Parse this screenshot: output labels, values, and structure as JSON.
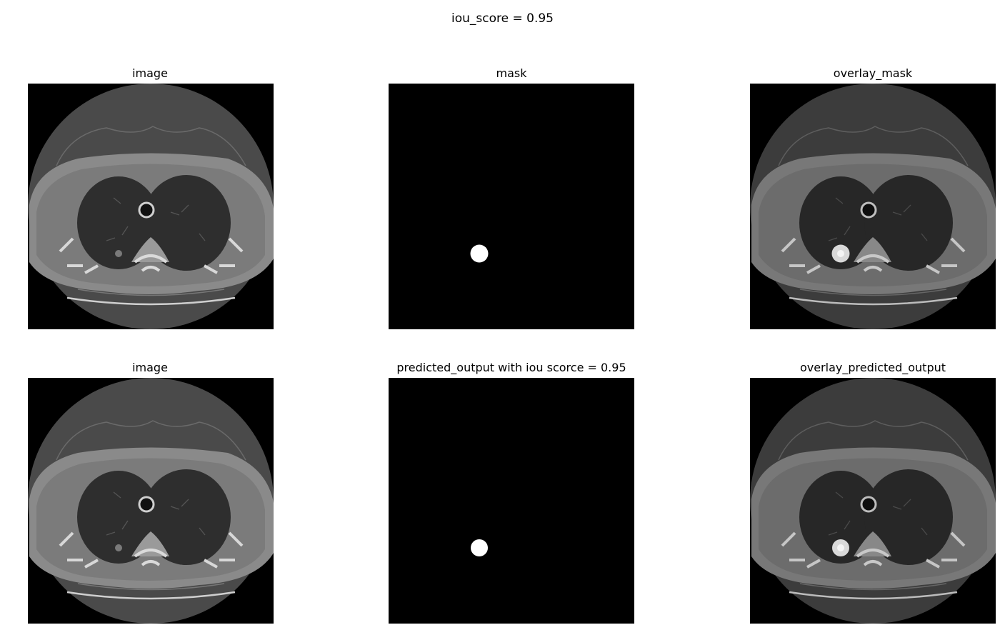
{
  "figure": {
    "suptitle": "iou_score = 0.95"
  },
  "rows": [
    {
      "panels": [
        {
          "title": "image",
          "kind": "ct-image",
          "lesion": false
        },
        {
          "title": "mask",
          "kind": "mask"
        },
        {
          "title": "overlay_mask",
          "kind": "ct-image",
          "lesion": true
        }
      ]
    },
    {
      "panels": [
        {
          "title": "image",
          "kind": "ct-image",
          "lesion": false
        },
        {
          "title": "predicted_output with iou scorce = 0.95",
          "kind": "mask"
        },
        {
          "title": "overlay_predicted_output",
          "kind": "ct-image",
          "lesion": true
        }
      ]
    }
  ],
  "colors": {
    "background": "#000000",
    "scan_field": "#4a4a4a",
    "body_tissue": "#8a8a8a",
    "lung": "#2e2e2e",
    "bone": "#d8d8d8",
    "mask_blob": "#ffffff"
  }
}
